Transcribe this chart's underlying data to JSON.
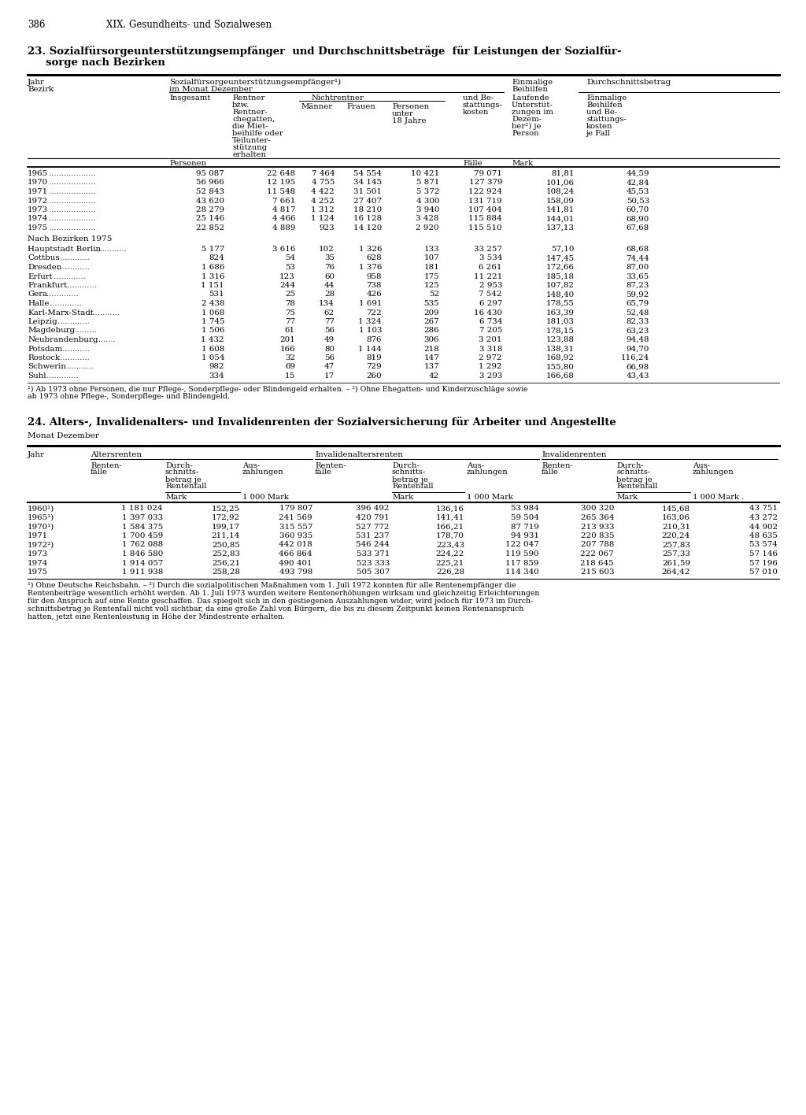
{
  "page_number": "386",
  "chapter_header": "XIX. Gesundheits- und Sozialwesen",
  "t1_title1": "23. Sozialfürsorgeunterstützungsempfänger  und Durchschnittsbeträge  für Leistungen der Sozialfür-",
  "t1_title2": "     sorge nach Bezirken",
  "t2_title": "24. Alters-, Invalidenalters- und Invalidenrenten der Sozialversicherung für Arbeiter und Angestellte",
  "t2_subtitle": "Monat Dezember",
  "t1_years": [
    [
      "1965",
      "95 087",
      "22 648",
      "7 464",
      "54 554",
      "10 421",
      "79 071",
      "81,81",
      "44,59"
    ],
    [
      "1970",
      "56 966",
      "12 195",
      "4 755",
      "34 145",
      "5 871",
      "127 379",
      "101,06",
      "42,84"
    ],
    [
      "1971",
      "52 843",
      "11 548",
      "4 422",
      "31 501",
      "5 372",
      "122 924",
      "108,24",
      "45,53"
    ],
    [
      "1972",
      "43 620",
      "7 661",
      "4 252",
      "27 407",
      "4 300",
      "131 719",
      "158,09",
      "50,53"
    ],
    [
      "1973",
      "28 279",
      "4 817",
      "1 312",
      "18 210",
      "3 940",
      "107 404",
      "141,81",
      "60,70"
    ],
    [
      "1974",
      "25 146",
      "4 466",
      "1 124",
      "16 128",
      "3 428",
      "115 884",
      "144,01",
      "68,90"
    ],
    [
      "1975",
      "22 852",
      "4 889",
      "923",
      "14 120",
      "2 920",
      "115 510",
      "137,13",
      "67,68"
    ]
  ],
  "t1_bezirke": [
    [
      "Hauptstadt Berlin",
      "5 177",
      "3 616",
      "102",
      "1 326",
      "133",
      "33 257",
      "57,10",
      "68,68"
    ],
    [
      "Cottbus",
      "824",
      "54",
      "35",
      "628",
      "107",
      "3 534",
      "147,45",
      "74,44"
    ],
    [
      "Dresden",
      "1 686",
      "53",
      "76",
      "1 376",
      "181",
      "6 261",
      "172,66",
      "87,00"
    ],
    [
      "Erfurt",
      "1 316",
      "123",
      "60",
      "958",
      "175",
      "11 221",
      "185,18",
      "33,65"
    ],
    [
      "Frankfurt",
      "1 151",
      "244",
      "44",
      "738",
      "125",
      "2 953",
      "107,82",
      "87,23"
    ],
    [
      "Gera",
      "531",
      "25",
      "28",
      "426",
      "52",
      "7 542",
      "148,40",
      "59,92"
    ],
    [
      "Halle",
      "2 438",
      "78",
      "134",
      "1 691",
      "535",
      "6 297",
      "178,55",
      "65,79"
    ],
    [
      "Karl-Marx-Stadt",
      "1 068",
      "75",
      "62",
      "722",
      "209",
      "16 430",
      "163,39",
      "52,48"
    ],
    [
      "Leipzig",
      "1 745",
      "77",
      "77",
      "1 324",
      "267",
      "6 734",
      "181,03",
      "82,33"
    ],
    [
      "Magdeburg",
      "1 506",
      "61",
      "56",
      "1 103",
      "286",
      "7 205",
      "178,15",
      "63,23"
    ],
    [
      "Neubrandenburg",
      "1 432",
      "201",
      "49",
      "876",
      "306",
      "3 201",
      "123,88",
      "94,48"
    ],
    [
      "Potsdam",
      "1 608",
      "166",
      "80",
      "1 144",
      "218",
      "3 318",
      "138,31",
      "94,70"
    ],
    [
      "Rostock",
      "1 054",
      "32",
      "56",
      "819",
      "147",
      "2 972",
      "168,92",
      "116,24"
    ],
    [
      "Schwerin",
      "982",
      "69",
      "47",
      "729",
      "137",
      "1 292",
      "155,80",
      "66,98"
    ],
    [
      "Suhl",
      "334",
      "15",
      "17",
      "260",
      "42",
      "3 293",
      "166,68",
      "43,43"
    ]
  ],
  "t1_fn1": "¹) Ab 1973 ohne Personen, die nur Pflege-, Sonderpflege- oder Blindengeld erhalten. – ²) Ohne Ehegatten- und Kinderzuschläge sowie",
  "t1_fn2": "ab 1973 ohne Pflege-, Sonderpflege- und Blindengeld.",
  "t2_data": [
    [
      "1960¹)",
      "1 181 024",
      "152,25",
      "179 807",
      "396 492",
      "136,16",
      "53 984",
      "300 320",
      "145,68",
      "43 751"
    ],
    [
      "1965¹)",
      "1 397 033",
      "172,92",
      "241 569",
      "420 791",
      "141,41",
      "59 504",
      "265 364",
      "163,06",
      "43 272"
    ],
    [
      "1970¹)",
      "1 584 375",
      "199,17",
      "315 557",
      "527 772",
      "166,21",
      "87 719",
      "213 933",
      "210,31",
      "44 902"
    ],
    [
      "1971",
      "1 700 459",
      "211,14",
      "360 935",
      "531 237",
      "178,70",
      "94 931",
      "220 835",
      "220,24",
      "48 635"
    ],
    [
      "1972²)",
      "1 762 088",
      "250,85",
      "442 018",
      "546 244",
      "223,43",
      "122 047",
      "207 788",
      "257,83",
      "53 574"
    ],
    [
      "1973",
      "1 846 580",
      "252,83",
      "466 864",
      "533 371",
      "224,22",
      "119 590",
      "222 067",
      "257,33",
      "57 146"
    ],
    [
      "1974",
      "1 914 057",
      "256,21",
      "490 401",
      "523 333",
      "225,21",
      "117 859",
      "218 645",
      "261,59",
      "57 196"
    ],
    [
      "1975",
      "1 911 938",
      "258,28",
      "493 798",
      "505 307",
      "226,28",
      "114 340",
      "215 603",
      "264,42",
      "57 010"
    ]
  ],
  "t2_fn": [
    "¹) Ohne Deutsche Reichsbahn. – ²) Durch die sozialpolitischen Maßnahmen vom 1. Juli 1972 konnten für alle Rentenempfänger die",
    "Rentenbeiträge wesentlich erhöht werden. Ab 1. Juli 1973 wurden weitere Rentenerhöhungen wirksam und gleichzeitig Erleichterungen",
    "für den Anspruch auf eine Rente geschaffen. Das spiegelt sich in den gestiegenen Auszahlungen wider, wird jedoch für 1973 im Durch-",
    "schnittsbetrag je Rentenfall nicht voll sichtbar, da eine große Zahl von Bürgern, die bis zu diesem Zeitpunkt keinen Rentenanspruch",
    "hatten, jetzt eine Rentenleistung in Höhe der Mindestrente erhalten."
  ]
}
